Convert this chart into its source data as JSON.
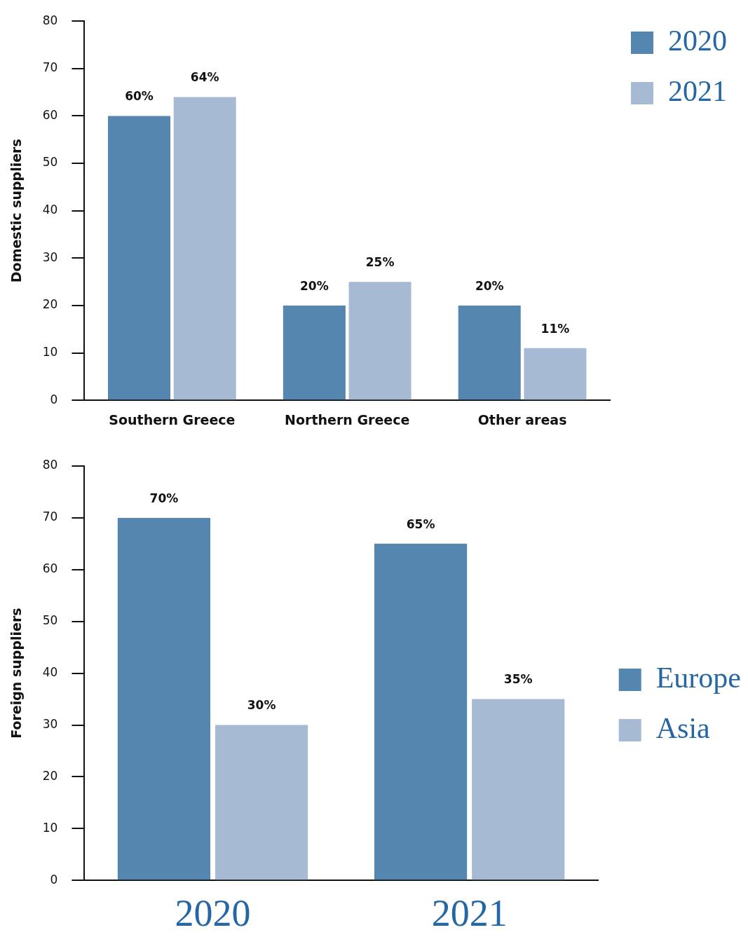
{
  "chart_data": [
    {
      "type": "bar",
      "ylabel": "Domestic suppliers",
      "categories": [
        "Southern Greece",
        "Northern Greece",
        "Other areas"
      ],
      "series": [
        {
          "name": "2020",
          "color": "#5586b0",
          "values": [
            60,
            20,
            20
          ],
          "value_labels": [
            "60%",
            "20%",
            "20%"
          ]
        },
        {
          "name": "2021",
          "color": "#a6bad3",
          "values": [
            64,
            25,
            11
          ],
          "value_labels": [
            "64%",
            "25%",
            "11%"
          ]
        }
      ],
      "ylim": [
        0,
        80
      ],
      "yticks": [
        0,
        10,
        20,
        30,
        40,
        50,
        60,
        70,
        80
      ],
      "grid": false,
      "legend": "top right"
    },
    {
      "type": "bar",
      "ylabel": "Foreign suppliers",
      "categories": [
        "2020",
        "2021"
      ],
      "series": [
        {
          "name": "Europe",
          "color": "#5586b0",
          "values": [
            70,
            65
          ],
          "value_labels": [
            "70%",
            "65%"
          ]
        },
        {
          "name": "Asia",
          "color": "#a6bad3",
          "values": [
            30,
            35
          ],
          "value_labels": [
            "30%",
            "35%"
          ]
        }
      ],
      "ylim": [
        0,
        80
      ],
      "yticks": [
        0,
        10,
        20,
        30,
        40,
        50,
        60,
        70,
        80
      ],
      "grid": false,
      "legend": "right"
    }
  ]
}
